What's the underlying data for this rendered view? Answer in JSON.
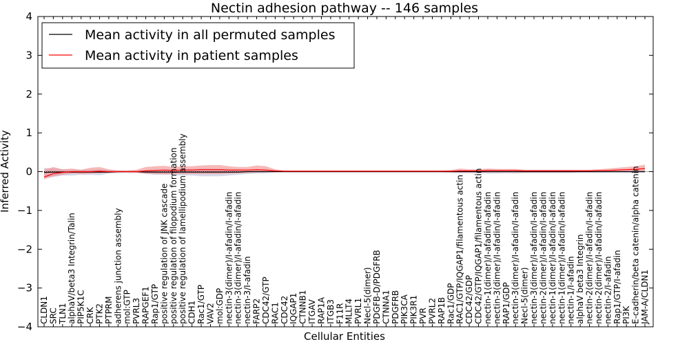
{
  "chart_data": {
    "type": "line",
    "title": "Nectin adhesion pathway -- 146 samples",
    "xlabel": "Cellular Entities",
    "ylabel": "Inferred Activity",
    "ylim": [
      -4,
      4
    ],
    "yticks": [
      -4,
      -3,
      -2,
      -1,
      0,
      1,
      2,
      3,
      4
    ],
    "ytick_labels": [
      "−4",
      "−3",
      "−2",
      "−1",
      "0",
      "1",
      "2",
      "3",
      "4"
    ],
    "grid": false,
    "legend_position": "top-left",
    "categories": [
      "CLDN1",
      "SRC",
      "TLN1",
      "alphaV/beta3 Integrin/Talin",
      "PIP5K1C",
      "CRK",
      "PTK2",
      "PTPRM",
      "adherens junction assembly",
      "mol:GTP",
      "PVRL3",
      "RAPGEF1",
      "Rap1/GTP",
      "positive regulation of JNK cascade",
      "positive regulation of filopodium formation",
      "positive regulation of lamellipodium assembly",
      "CDH1",
      "Rac1/GTP",
      "VAV2",
      "mol:GDP",
      "nectin-3(dimer)/I-afadin/I-afadin",
      "nectin-3(dimer)/I-afadin/I-afadin",
      "nectin-3/I-afadin",
      "FARP2",
      "CDC42/GTP",
      "RAC1",
      "CDC42",
      "IQGAP1",
      "CTNNB1",
      "ITGAV",
      "RAP1A",
      "ITGB3",
      "F11R",
      "MLLT4",
      "PVRL1",
      "Necl-5(dimer)",
      "PDGFB-D/PDGFRB",
      "CTNNA1",
      "PDGFRB",
      "PIK3CA",
      "PIK3R1",
      "PVR",
      "PVRL2",
      "RAP1B",
      "Rac1/GDP",
      "RAC1/GTP/IQGAP1/filamentous actin",
      "CDC42/GDP",
      "CDC42/GTP/IQGAP1/filamentous actin",
      "nectin-1(dimer)/I-afadin/I-afadin",
      "nectin-3(dimer)/I-afadin/I-afadin",
      "RAP1/GDP",
      "nectin-3(dimer)/I-afadin/I-afadin",
      "Necl-5(dimer)",
      "nectin-3(dimer)/I-afadin/I-afadin",
      "nectin-2(dimer)/I-afadin/I-afadin",
      "nectin-1(dimer)/I-afadin/I-afadin",
      "nectin-1(dimer)/I-afadin/I-afadin",
      "nectin-1/I-afadin",
      "alphaV beta3 Integrin",
      "nectin-2(dimer)/I-afadin/I-afadin",
      "nectin-2(dimer)/I-afadin/I-afadin",
      "nectin-2/I-afadin",
      "Rap1/GTP/I-afadin",
      "PI3K",
      "E-cadherin/beta catenin/alpha catenin",
      "JAM-A/CLDN1"
    ],
    "series": [
      {
        "name": "Mean activity in all permuted samples",
        "color": "#000000",
        "values": [
          -0.02,
          -0.01,
          -0.01,
          -0.01,
          -0.01,
          -0.01,
          -0.01,
          -0.01,
          0.0,
          0.0,
          0.0,
          -0.01,
          -0.01,
          -0.01,
          -0.01,
          -0.01,
          -0.01,
          -0.01,
          -0.01,
          -0.01,
          -0.01,
          -0.01,
          0.0,
          0.0,
          0.0,
          0.0,
          0.0,
          0.0,
          0.0,
          0.0,
          0.0,
          0.0,
          0.0,
          0.0,
          0.0,
          0.0,
          0.0,
          0.0,
          0.0,
          0.0,
          0.0,
          0.0,
          0.0,
          0.0,
          0.0,
          0.0,
          0.0,
          0.0,
          0.0,
          0.0,
          0.0,
          0.0,
          0.0,
          0.0,
          0.0,
          0.0,
          0.0,
          0.0,
          0.0,
          0.0,
          0.0,
          0.0,
          0.0,
          0.0,
          0.0,
          0.0
        ],
        "band_low": [
          -0.15,
          -0.14,
          -0.1,
          -0.1,
          -0.08,
          -0.08,
          -0.09,
          -0.05,
          -0.04,
          -0.03,
          -0.03,
          -0.06,
          -0.08,
          -0.08,
          -0.09,
          -0.1,
          -0.1,
          -0.12,
          -0.12,
          -0.12,
          -0.1,
          -0.08,
          -0.06,
          -0.05,
          -0.04,
          -0.02,
          -0.02,
          -0.02,
          -0.02,
          -0.02,
          -0.02,
          -0.02,
          -0.02,
          -0.02,
          -0.02,
          -0.02,
          -0.02,
          -0.02,
          -0.02,
          -0.02,
          -0.02,
          -0.02,
          -0.02,
          -0.02,
          -0.03,
          -0.04,
          -0.04,
          -0.04,
          -0.05,
          -0.05,
          -0.04,
          -0.05,
          -0.04,
          -0.04,
          -0.04,
          -0.04,
          -0.04,
          -0.04,
          -0.03,
          -0.03,
          -0.03,
          -0.03,
          -0.03,
          -0.03,
          -0.03,
          -0.03
        ],
        "band_high": [
          0.1,
          0.08,
          0.06,
          0.05,
          0.05,
          0.05,
          0.06,
          0.04,
          0.03,
          0.02,
          0.02,
          0.04,
          0.05,
          0.05,
          0.06,
          0.07,
          0.07,
          0.08,
          0.08,
          0.08,
          0.07,
          0.06,
          0.05,
          0.04,
          0.03,
          0.02,
          0.02,
          0.02,
          0.02,
          0.02,
          0.02,
          0.02,
          0.02,
          0.02,
          0.02,
          0.02,
          0.02,
          0.02,
          0.02,
          0.02,
          0.02,
          0.02,
          0.02,
          0.02,
          0.03,
          0.04,
          0.04,
          0.04,
          0.05,
          0.05,
          0.04,
          0.05,
          0.04,
          0.04,
          0.04,
          0.04,
          0.04,
          0.04,
          0.03,
          0.03,
          0.03,
          0.03,
          0.03,
          0.03,
          0.03,
          0.03
        ]
      },
      {
        "name": "Mean activity in patient samples",
        "color": "#ff0000",
        "values": [
          -0.14,
          -0.05,
          -0.02,
          0.0,
          0.0,
          0.0,
          0.01,
          0.0,
          0.0,
          0.0,
          0.0,
          0.02,
          0.03,
          0.04,
          0.03,
          0.04,
          0.04,
          0.05,
          0.05,
          0.05,
          0.04,
          0.04,
          0.04,
          0.05,
          0.04,
          0.02,
          0.01,
          0.01,
          0.01,
          0.01,
          0.01,
          0.01,
          0.01,
          0.01,
          0.01,
          0.01,
          0.01,
          0.01,
          0.01,
          0.01,
          0.01,
          0.01,
          0.01,
          0.01,
          0.01,
          0.02,
          0.02,
          0.02,
          0.03,
          0.03,
          0.03,
          0.03,
          0.02,
          0.02,
          0.02,
          0.02,
          0.02,
          0.02,
          0.02,
          0.02,
          0.03,
          0.03,
          0.04,
          0.05,
          0.06,
          0.08
        ],
        "band_low": [
          -0.2,
          -0.12,
          -0.08,
          -0.05,
          -0.06,
          -0.05,
          -0.04,
          -0.03,
          -0.02,
          -0.02,
          -0.03,
          -0.05,
          -0.06,
          -0.07,
          -0.06,
          -0.06,
          -0.06,
          -0.06,
          -0.06,
          -0.06,
          -0.05,
          -0.04,
          -0.03,
          -0.02,
          -0.02,
          -0.01,
          -0.01,
          -0.01,
          -0.01,
          -0.01,
          -0.01,
          -0.01,
          -0.01,
          -0.01,
          -0.01,
          -0.01,
          -0.01,
          -0.01,
          -0.01,
          -0.01,
          -0.01,
          -0.01,
          -0.01,
          -0.01,
          -0.02,
          -0.02,
          -0.02,
          -0.02,
          -0.02,
          -0.02,
          -0.02,
          -0.02,
          -0.02,
          -0.02,
          -0.02,
          -0.02,
          -0.02,
          -0.02,
          -0.01,
          -0.01,
          -0.01,
          -0.01,
          -0.01,
          -0.01,
          0.0,
          0.0
        ],
        "band_high": [
          0.05,
          0.12,
          0.06,
          0.08,
          0.05,
          0.1,
          0.12,
          0.06,
          0.03,
          0.03,
          0.05,
          0.12,
          0.14,
          0.15,
          0.12,
          0.14,
          0.14,
          0.16,
          0.17,
          0.17,
          0.14,
          0.12,
          0.12,
          0.16,
          0.14,
          0.06,
          0.03,
          0.03,
          0.03,
          0.03,
          0.03,
          0.03,
          0.03,
          0.03,
          0.03,
          0.03,
          0.03,
          0.03,
          0.03,
          0.03,
          0.03,
          0.03,
          0.03,
          0.03,
          0.04,
          0.08,
          0.06,
          0.06,
          0.08,
          0.07,
          0.07,
          0.07,
          0.05,
          0.05,
          0.05,
          0.05,
          0.05,
          0.05,
          0.05,
          0.05,
          0.06,
          0.08,
          0.1,
          0.12,
          0.14,
          0.18
        ]
      }
    ],
    "legend": [
      "Mean activity in all permuted samples",
      "Mean activity in patient samples"
    ]
  }
}
